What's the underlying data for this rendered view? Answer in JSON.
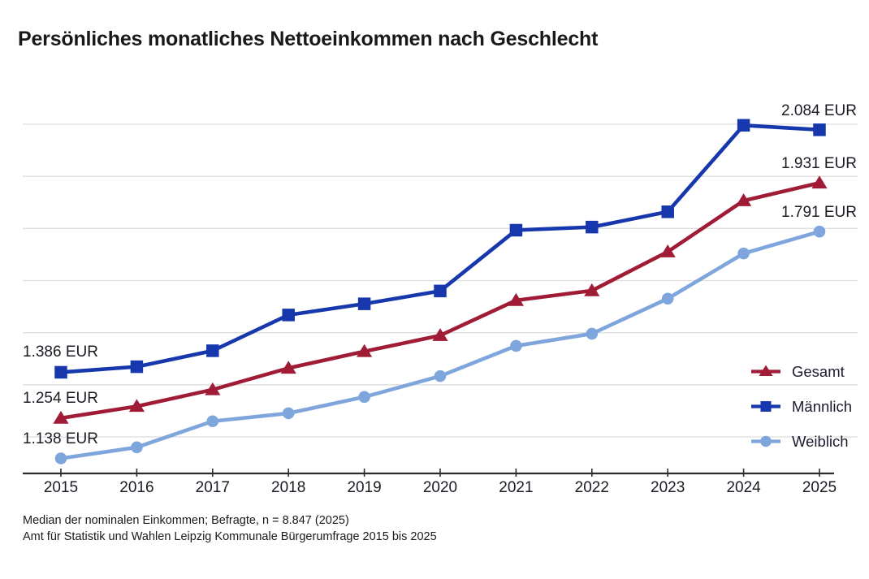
{
  "title": "Persönliches monatliches Nettoeinkommen nach Geschlecht",
  "chart_data": {
    "type": "line",
    "x": [
      2015,
      2016,
      2017,
      2018,
      2019,
      2020,
      2021,
      2022,
      2023,
      2024,
      2025
    ],
    "series": [
      {
        "name": "Gesamt",
        "marker": "triangle",
        "color": "#A01C36",
        "values": [
          1254,
          1288,
          1336,
          1398,
          1446,
          1492,
          1593,
          1621,
          1733,
          1880,
          1931
        ],
        "start_label": "1.254 EUR",
        "end_label": "1.931 EUR"
      },
      {
        "name": "Männlich",
        "marker": "square",
        "color": "#1638AC",
        "values": [
          1386,
          1402,
          1448,
          1551,
          1583,
          1620,
          1795,
          1804,
          1848,
          2097,
          2084
        ],
        "start_label": "1.386 EUR",
        "end_label": "2.084 EUR"
      },
      {
        "name": "Weiblich",
        "marker": "circle",
        "color": "#7EA6DC",
        "values": [
          1138,
          1170,
          1245,
          1268,
          1315,
          1375,
          1462,
          1497,
          1598,
          1728,
          1791
        ],
        "start_label": "1.138 EUR",
        "end_label": "1.791 EUR"
      }
    ],
    "title": "Persönliches monatliches Nettoeinkommen nach Geschlecht",
    "xlabel": "",
    "ylabel": "",
    "ylim": [
      1200,
      2100
    ],
    "grid_step": 150,
    "grid": "on",
    "legend_position": "right-bottom",
    "unit": "EUR"
  },
  "footnotes": {
    "line1": "Median der nominalen Einkommen; Befragte, n = 8.847 (2025)",
    "line2": "Amt für Statistik und Wahlen Leipzig Kommunale Bürgerumfrage 2015 bis 2025"
  },
  "colors": {
    "grid": "#DEDEDE",
    "axis": "#2B2B2B",
    "tick_text": "#1B1B24",
    "title_text": "#191919",
    "footnote_text": "#1A1A1A"
  }
}
